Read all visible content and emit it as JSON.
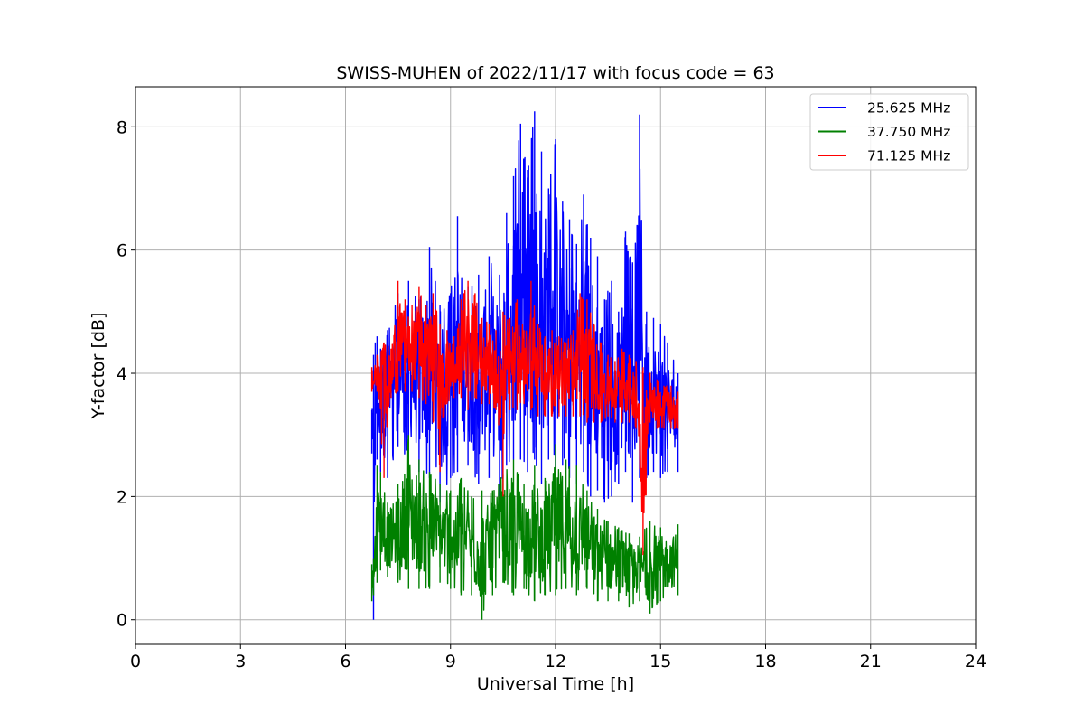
{
  "chart_data": {
    "type": "line",
    "title": "SWISS-MUHEN of 2022/11/17 with focus code = 63",
    "xlabel": "Universal Time [h]",
    "ylabel": "Y-factor [dB]",
    "xlim": [
      0,
      24
    ],
    "ylim": [
      -0.4,
      8.65
    ],
    "xticks": [
      "0",
      "3",
      "6",
      "9",
      "12",
      "15",
      "18",
      "21",
      "24"
    ],
    "yticks": [
      "0",
      "2",
      "4",
      "6",
      "8"
    ],
    "grid": true,
    "legend_position": "top-right",
    "series": [
      {
        "name": "25.625 MHz",
        "color": "#0000ff",
        "x": [
          6.75,
          6.8,
          6.85,
          6.9,
          7.0,
          7.2,
          7.5,
          7.8,
          8.1,
          8.4,
          8.7,
          9.0,
          9.2,
          9.5,
          9.8,
          10.1,
          10.4,
          10.6,
          10.8,
          11.0,
          11.2,
          11.4,
          11.6,
          11.8,
          12.0,
          12.2,
          12.4,
          12.6,
          12.8,
          13.0,
          13.2,
          13.4,
          13.6,
          13.8,
          14.0,
          14.2,
          14.4,
          14.6,
          14.8,
          15.0,
          15.2,
          15.5
        ],
        "min": [
          2.7,
          0.0,
          2.5,
          2.6,
          2.4,
          2.3,
          2.8,
          2.6,
          2.4,
          2.3,
          1.9,
          2.3,
          2.4,
          2.5,
          2.2,
          2.3,
          2.0,
          2.5,
          2.6,
          2.6,
          2.4,
          2.6,
          2.2,
          2.6,
          2.4,
          2.5,
          2.3,
          2.2,
          2.4,
          2.0,
          2.1,
          1.9,
          2.0,
          2.2,
          2.4,
          1.9,
          2.3,
          2.3,
          2.4,
          2.3,
          2.4,
          2.4
        ],
        "max": [
          3.4,
          4.3,
          4.5,
          4.6,
          4.4,
          4.7,
          5.3,
          5.5,
          5.2,
          6.05,
          5.1,
          5.3,
          6.55,
          5.4,
          5.6,
          5.9,
          5.6,
          6.6,
          7.2,
          8.05,
          7.3,
          8.25,
          7.6,
          7.0,
          7.8,
          6.8,
          6.5,
          6.1,
          6.9,
          6.2,
          5.9,
          5.2,
          5.5,
          5.0,
          6.3,
          5.8,
          8.2,
          5.0,
          4.9,
          4.8,
          4.5,
          4.0
        ]
      },
      {
        "name": "37.750 MHz",
        "color": "#008000",
        "x": [
          6.75,
          6.8,
          6.9,
          7.0,
          7.2,
          7.5,
          7.8,
          8.1,
          8.4,
          8.7,
          9.0,
          9.3,
          9.6,
          9.9,
          10.2,
          10.5,
          10.8,
          11.1,
          11.4,
          11.7,
          12.0,
          12.3,
          12.6,
          12.9,
          13.2,
          13.5,
          13.8,
          14.1,
          14.4,
          14.7,
          15.0,
          15.5
        ],
        "min": [
          0.3,
          0.4,
          0.6,
          0.8,
          0.7,
          0.6,
          0.5,
          0.5,
          0.5,
          0.6,
          0.5,
          0.4,
          0.4,
          0.0,
          0.4,
          0.6,
          0.4,
          0.5,
          0.3,
          0.4,
          0.4,
          0.5,
          0.4,
          0.5,
          0.3,
          0.3,
          0.3,
          0.2,
          0.3,
          0.1,
          0.3,
          0.4
        ],
        "max": [
          0.9,
          1.0,
          2.5,
          2.4,
          1.9,
          2.2,
          3.0,
          2.6,
          2.4,
          2.2,
          2.1,
          2.3,
          2.0,
          2.1,
          2.1,
          2.35,
          2.6,
          2.2,
          2.5,
          2.3,
          2.85,
          2.6,
          2.5,
          2.1,
          1.8,
          1.6,
          1.5,
          1.4,
          1.35,
          1.6,
          1.5,
          1.55
        ]
      },
      {
        "name": "71.125 MHz",
        "color": "#ff0000",
        "x": [
          6.75,
          6.9,
          7.1,
          7.3,
          7.5,
          7.7,
          7.9,
          8.1,
          8.3,
          8.5,
          8.7,
          8.9,
          9.1,
          9.3,
          9.5,
          9.7,
          9.9,
          10.1,
          10.3,
          10.5,
          10.7,
          10.9,
          11.1,
          11.3,
          11.5,
          11.7,
          11.9,
          12.1,
          12.3,
          12.5,
          12.7,
          12.9,
          13.1,
          13.3,
          13.5,
          13.7,
          13.9,
          14.1,
          14.3,
          14.5,
          14.7,
          14.9,
          15.1,
          15.3,
          15.5
        ],
        "min": [
          3.7,
          3.7,
          2.3,
          3.6,
          3.7,
          3.7,
          3.7,
          3.6,
          3.5,
          3.2,
          2.4,
          3.5,
          3.6,
          3.6,
          3.4,
          3.6,
          3.5,
          3.5,
          3.4,
          2.0,
          3.4,
          3.4,
          3.5,
          3.4,
          3.3,
          3.3,
          3.3,
          3.3,
          3.3,
          3.3,
          3.3,
          3.2,
          3.2,
          3.2,
          3.3,
          3.2,
          3.2,
          3.2,
          3.1,
          1.05,
          3.2,
          3.1,
          3.1,
          3.1,
          3.1
        ],
        "max": [
          4.1,
          4.3,
          4.5,
          4.4,
          5.5,
          5.2,
          5.1,
          5.4,
          5.1,
          5.3,
          4.8,
          4.7,
          4.6,
          5.2,
          5.5,
          5.3,
          4.9,
          4.8,
          4.7,
          5.0,
          4.9,
          5.2,
          4.7,
          5.5,
          4.8,
          4.6,
          4.7,
          4.6,
          4.5,
          4.7,
          5.3,
          5.2,
          4.8,
          4.5,
          4.3,
          4.2,
          4.4,
          4.3,
          4.2,
          4.1,
          4.0,
          3.9,
          3.8,
          3.8,
          3.7
        ]
      }
    ]
  }
}
